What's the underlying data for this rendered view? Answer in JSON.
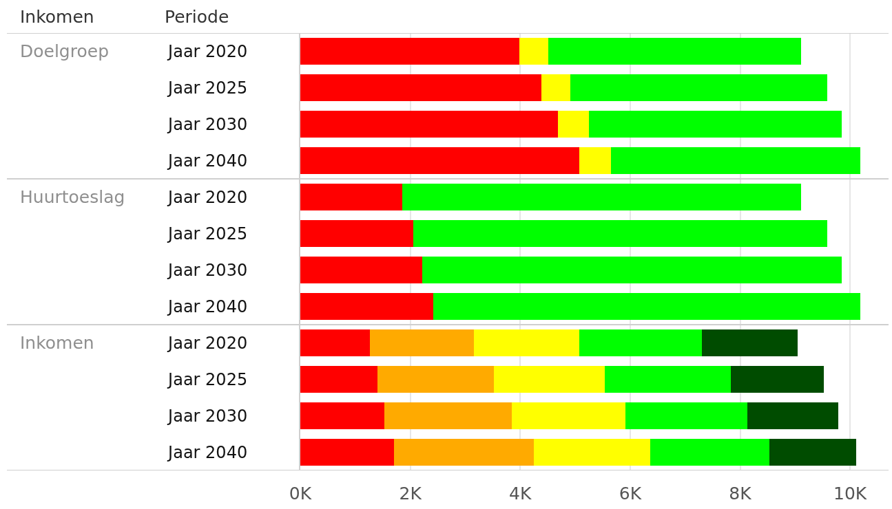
{
  "chart_data": {
    "type": "bar",
    "orientation": "horizontal",
    "stacked": true,
    "categories": [
      "Jaar 2020",
      "Jaar 2025",
      "Jaar 2030",
      "Jaar 2040",
      "Jaar 2020",
      "Jaar 2025",
      "Jaar 2030",
      "Jaar 2040",
      "Jaar 2020",
      "Jaar 2025",
      "Jaar 2030",
      "Jaar 2040"
    ],
    "ylabel": "Periode",
    "annotations": [
      "Inkomen",
      "Doelgroep",
      "Huurtoeslag",
      "Inkomen"
    ],
    "xlim": [
      0,
      10700
    ],
    "xticks": [
      {
        "value": 0,
        "label": "0K"
      },
      {
        "value": 2000,
        "label": "2K"
      },
      {
        "value": 4000,
        "label": "4K"
      },
      {
        "value": 6000,
        "label": "6K"
      },
      {
        "value": 8000,
        "label": "8K"
      },
      {
        "value": 10000,
        "label": "10K"
      }
    ],
    "grid": "x",
    "series": [
      {
        "color": "#ff0000",
        "values": [
          3980,
          4380,
          4680,
          5080,
          1860,
          2060,
          2220,
          2420,
          1270,
          1400,
          1530,
          1700
        ]
      },
      {
        "color": "#ffaa00",
        "values": [
          null,
          null,
          null,
          null,
          null,
          null,
          null,
          null,
          1890,
          2120,
          2320,
          2550
        ]
      },
      {
        "color": "#ffff00",
        "values": [
          530,
          530,
          570,
          570,
          null,
          null,
          null,
          null,
          1910,
          2020,
          2060,
          2120
        ]
      },
      {
        "color": "#00ff00",
        "values": [
          4600,
          4670,
          4600,
          4530,
          7250,
          7520,
          7630,
          7760,
          2230,
          2290,
          2220,
          2160
        ]
      },
      {
        "color": "#004c00",
        "values": [
          null,
          null,
          null,
          null,
          null,
          null,
          null,
          null,
          1750,
          1690,
          1650,
          1580
        ]
      }
    ]
  }
}
